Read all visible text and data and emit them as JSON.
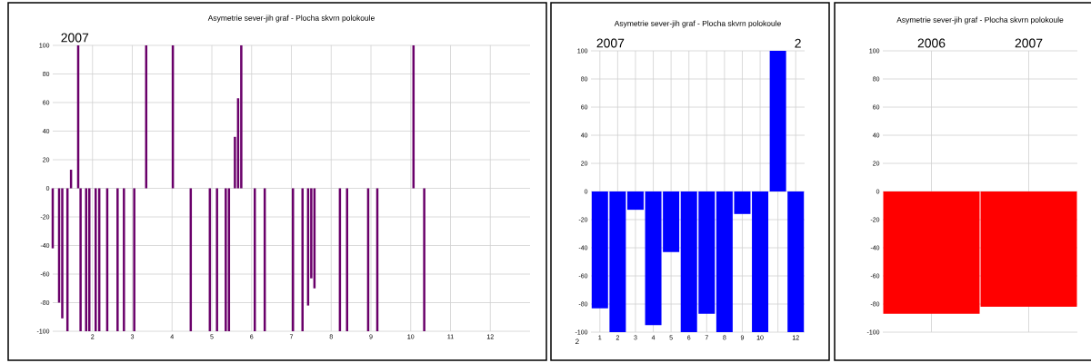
{
  "chart_data": [
    {
      "type": "bar",
      "title": "Asymetrie sever-jih  graf -  Plocha skvrn polokoule",
      "color": "#6a006a",
      "x": [
        1.0,
        1.16,
        1.24,
        1.37,
        1.46,
        1.64,
        1.7,
        1.84,
        1.92,
        2.08,
        2.17,
        2.37,
        2.63,
        2.79,
        3.05,
        3.35,
        4.02,
        4.47,
        4.95,
        5.13,
        5.35,
        5.43,
        5.58,
        5.66,
        5.74,
        6.08,
        6.33,
        7.04,
        7.28,
        7.42,
        7.5,
        7.58,
        8.22,
        8.4,
        8.93,
        9.16,
        10.07,
        10.34
      ],
      "values": [
        -42,
        -80,
        -91,
        -100,
        13,
        100,
        -100,
        -100,
        -100,
        -100,
        -100,
        -100,
        -100,
        -100,
        -100,
        100,
        100,
        -100,
        -100,
        -100,
        -100,
        -100,
        36,
        63,
        100,
        -100,
        -100,
        -100,
        -100,
        -82,
        -63,
        -70,
        -100,
        -100,
        -100,
        -100,
        100,
        -100
      ],
      "xlim": [
        1,
        13
      ],
      "xticks": [
        2,
        3,
        4,
        5,
        6,
        7,
        8,
        9,
        10,
        11,
        12
      ],
      "ylim": [
        -100,
        100
      ],
      "yticks": [
        -100,
        -80,
        -60,
        -40,
        -20,
        0,
        20,
        40,
        60,
        80,
        100
      ],
      "grid": true,
      "annotations": [
        "2007"
      ]
    },
    {
      "type": "bar",
      "title": "Asymetrie sever-jih  graf -  Plocha skvrn polokoule",
      "color": "#0000ff",
      "categories": [
        "1",
        "2",
        "3",
        "4",
        "5",
        "6",
        "7",
        "8",
        "9",
        "10",
        null,
        "12"
      ],
      "values": [
        -83,
        -100,
        -13,
        -95,
        -43,
        -100,
        -87,
        -100,
        -16,
        -100,
        100,
        -100
      ],
      "ylim": [
        -100,
        100
      ],
      "yticks": [
        -100,
        -80,
        -60,
        -40,
        -20,
        0,
        20,
        40,
        60,
        80,
        100
      ],
      "grid": true,
      "annotations": [
        "2007",
        "2",
        "2"
      ]
    },
    {
      "type": "bar",
      "title": "Asymetrie sever-jih  graf -  Plocha skvrn polokoule",
      "color": "#ff0000",
      "categories": [
        "2006",
        "2007"
      ],
      "values": [
        -87,
        -82
      ],
      "ylim": [
        -100,
        100
      ],
      "yticks": [
        -100,
        -80,
        -60,
        -40,
        -20,
        0,
        20,
        40,
        60,
        80,
        100
      ],
      "grid": true
    }
  ]
}
